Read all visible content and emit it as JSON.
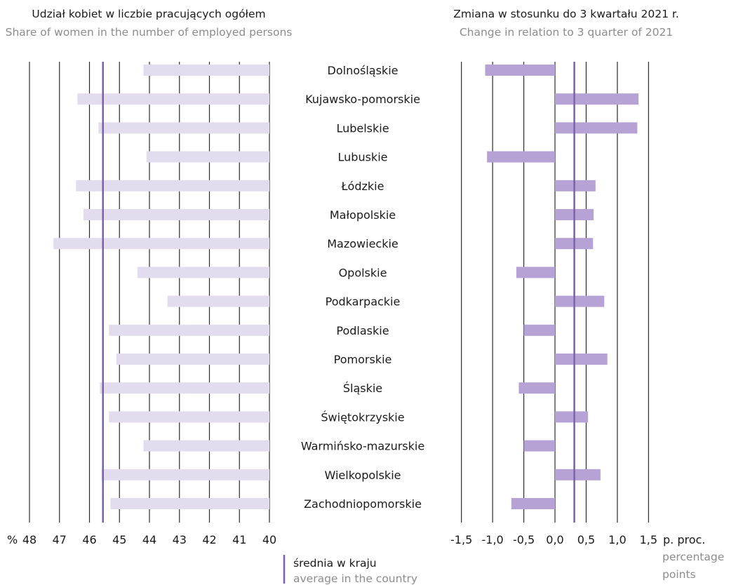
{
  "chart_data": [
    {
      "type": "bar",
      "orientation": "horizontal",
      "title": "Udział kobiet w liczbie pracujących ogółem",
      "subtitle": "Share of women in the number of employed persons",
      "axis_unit": "%",
      "x_reversed": true,
      "xlim": [
        40,
        48
      ],
      "xticks": [
        "48",
        "47",
        "46",
        "45",
        "44",
        "43",
        "42",
        "41",
        "40"
      ],
      "categories": [
        "Dolnośląskie",
        "Kujawsko-pomorskie",
        "Lubelskie",
        "Lubuskie",
        "Łódzkie",
        "Małopolskie",
        "Mazowieckie",
        "Opolskie",
        "Podkarpackie",
        "Podlaskie",
        "Pomorskie",
        "Śląskie",
        "Świętokrzyskie",
        "Warmińsko-mazurskie",
        "Wielkopolskie",
        "Zachodniopomorskie"
      ],
      "values": [
        44.2,
        46.4,
        45.7,
        44.1,
        46.45,
        46.2,
        47.2,
        44.4,
        43.4,
        45.35,
        45.1,
        45.65,
        45.35,
        44.2,
        45.6,
        45.3
      ],
      "average": 45.55,
      "bar_color": "#e3dcef",
      "average_color": "#7c5fb0",
      "grid": true
    },
    {
      "type": "bar",
      "orientation": "horizontal",
      "title": "Zmiana  w stosunku do 3 kwartału 2021 r.",
      "subtitle": "Change in relation to 3 quarter of 2021",
      "xlim": [
        -1.5,
        1.5
      ],
      "xticks": [
        "-1,5",
        "-1,0",
        "-0,5",
        "0,0",
        "0,5",
        "1,0",
        "1,5"
      ],
      "unit_label_pl": "p. proc.",
      "unit_label_en": [
        "percentage",
        "points"
      ],
      "categories": [
        "Dolnośląskie",
        "Kujawsko-pomorskie",
        "Lubelskie",
        "Lubuskie",
        "Łódzkie",
        "Małopolskie",
        "Mazowieckie",
        "Opolskie",
        "Podkarpackie",
        "Podlaskie",
        "Pomorskie",
        "Śląskie",
        "Świętokrzyskie",
        "Warmińsko-mazurskie",
        "Wielkopolskie",
        "Zachodniopomorskie"
      ],
      "values": [
        -1.12,
        1.34,
        1.32,
        -1.09,
        0.65,
        0.62,
        0.61,
        -0.62,
        0.79,
        -0.5,
        0.84,
        -0.58,
        0.53,
        -0.5,
        0.73,
        -0.7
      ],
      "average": 0.31,
      "bar_color": "#b7a2d6",
      "average_color": "#7c5fb0",
      "grid": true
    }
  ],
  "legend": {
    "label_pl": "średnia w kraju",
    "label_en": "average in the country",
    "color": "#7c5fb0"
  }
}
